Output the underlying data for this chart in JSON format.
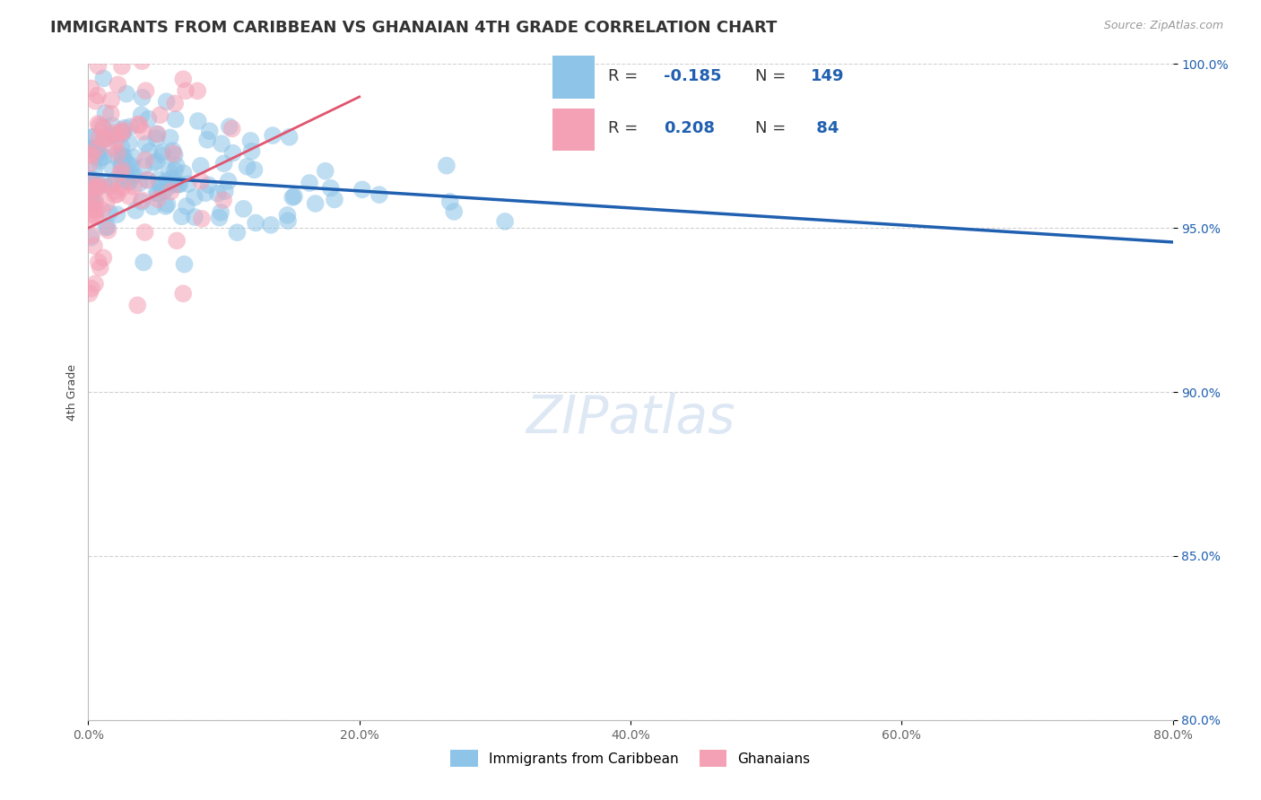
{
  "title": "IMMIGRANTS FROM CARIBBEAN VS GHANAIAN 4TH GRADE CORRELATION CHART",
  "source": "Source: ZipAtlas.com",
  "ylabel": "4th Grade",
  "xlim": [
    0.0,
    80.0
  ],
  "ylim": [
    80.0,
    100.0
  ],
  "xticks": [
    0.0,
    20.0,
    40.0,
    60.0,
    80.0
  ],
  "yticks": [
    80.0,
    85.0,
    90.0,
    95.0,
    100.0
  ],
  "blue_R": -0.185,
  "blue_N": 149,
  "pink_R": 0.208,
  "pink_N": 84,
  "blue_color": "#8dc4e8",
  "pink_color": "#f4a0b5",
  "blue_line_color": "#2060b0",
  "pink_line_color": "#e05570",
  "background_color": "#ffffff",
  "grid_color": "#cccccc",
  "legend_value_color": "#2060b0",
  "title_fontsize": 13,
  "axis_label_fontsize": 9,
  "tick_fontsize": 10,
  "watermark": "ZIPatlas"
}
